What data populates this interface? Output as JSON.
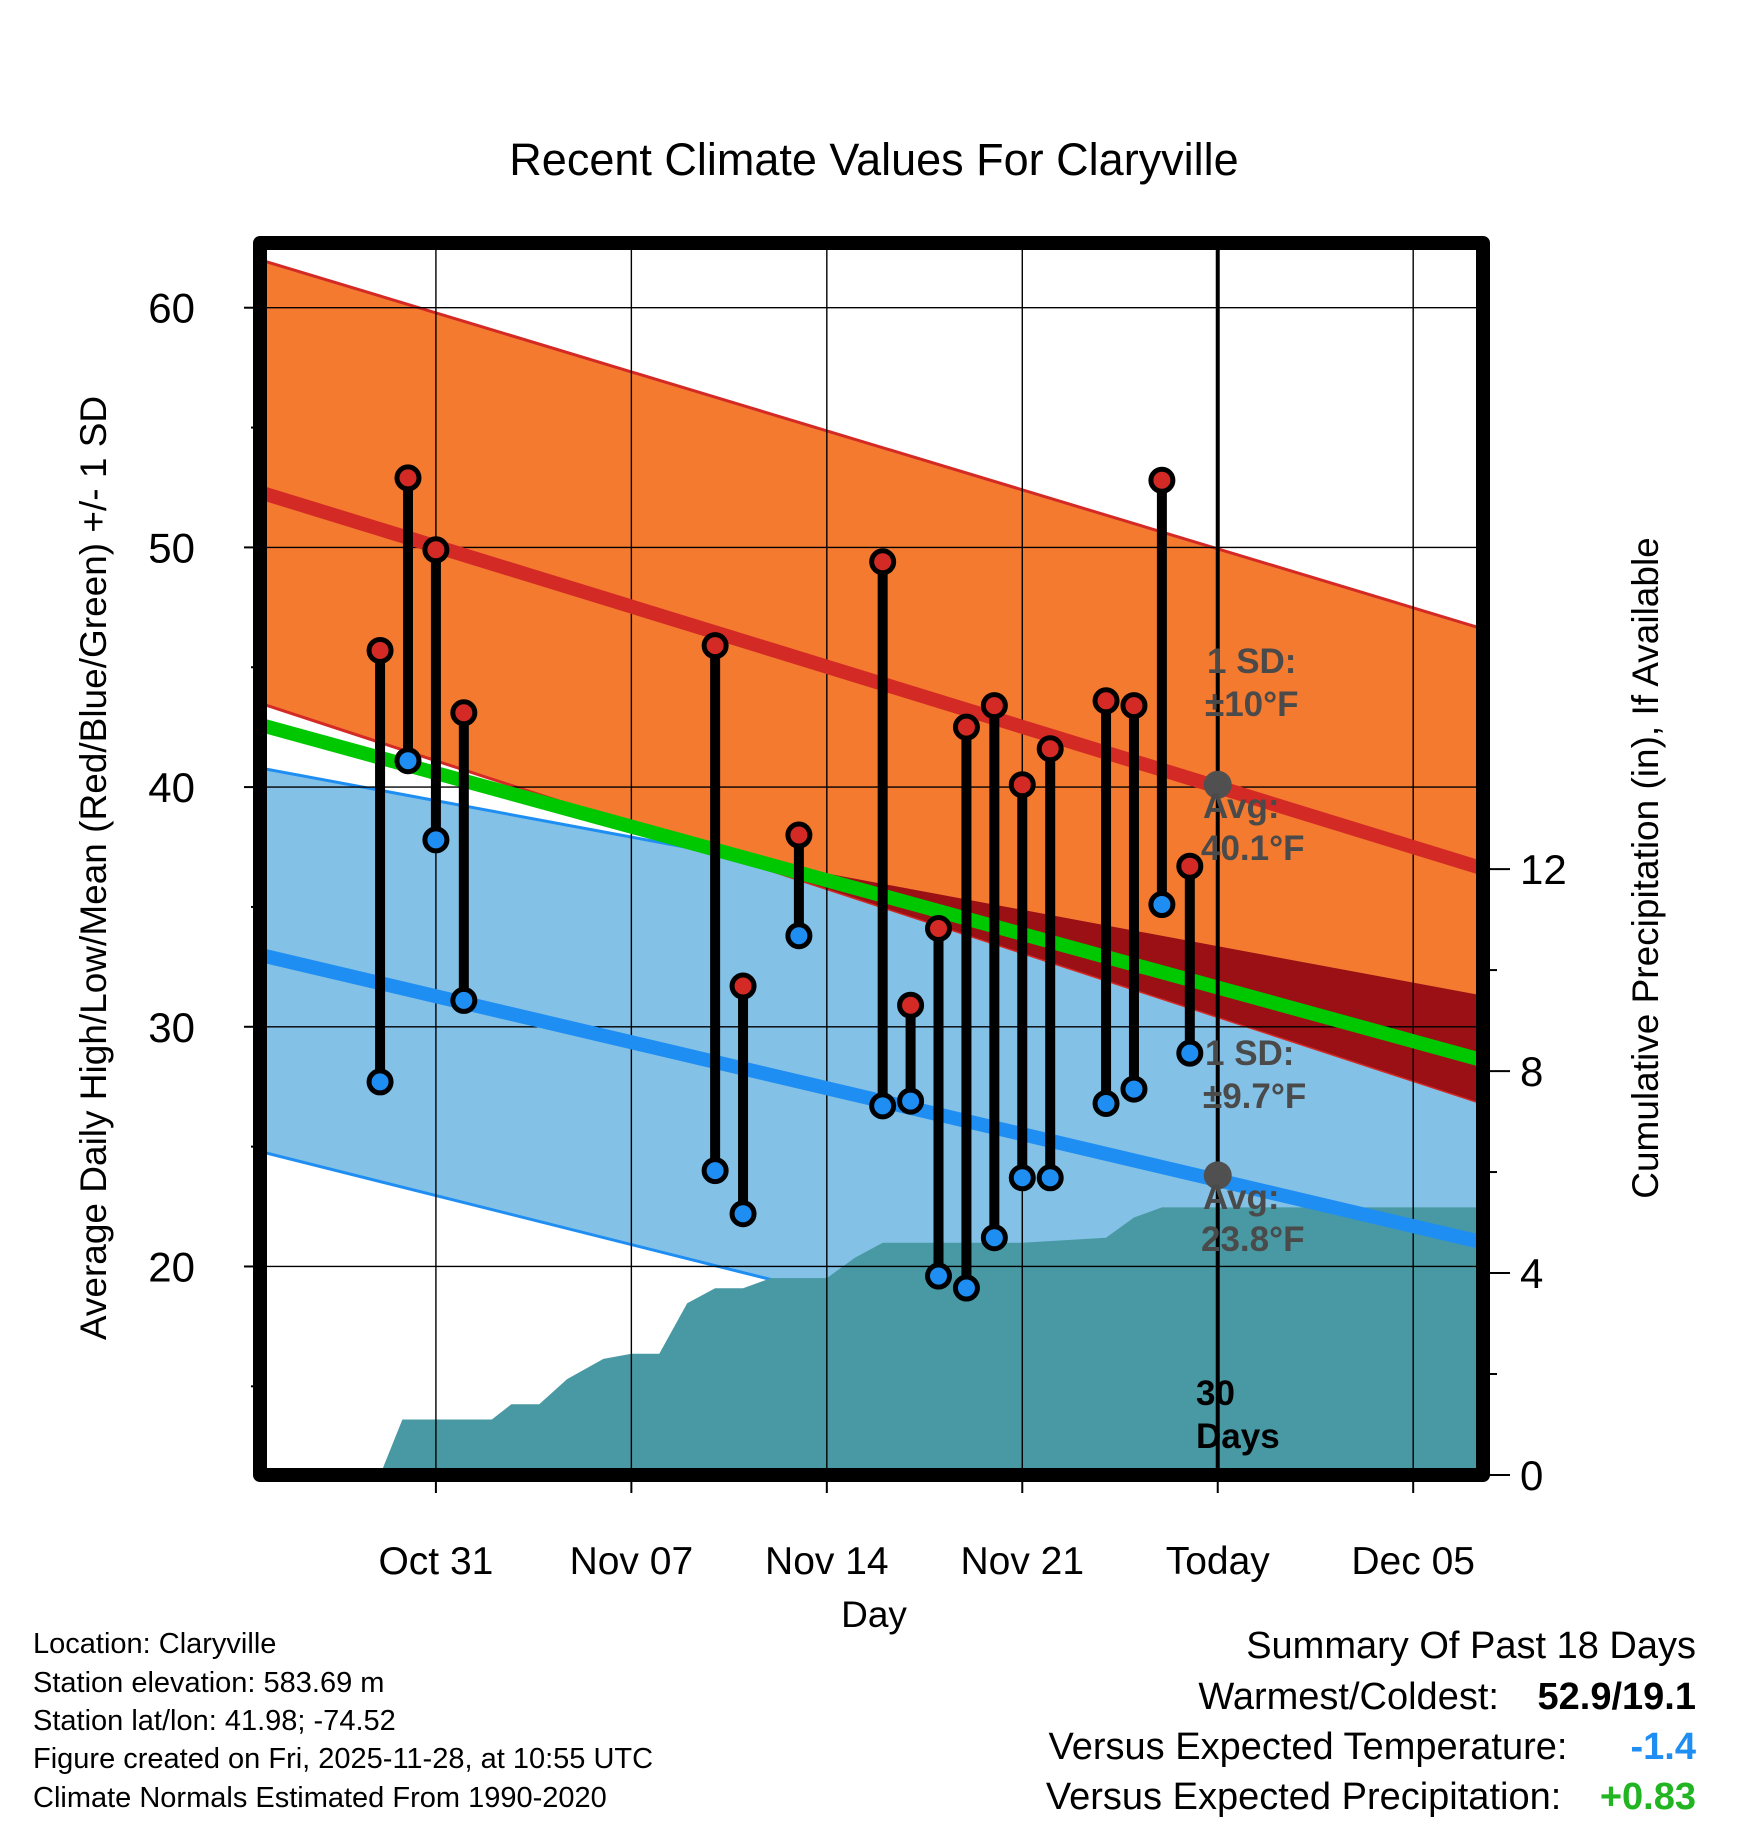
{
  "chart_data": {
    "type": "line",
    "title": "Recent Climate Values For Claryville",
    "xlabel": "Day",
    "ylabel": "Average Daily High/Low/Mean (Red/Blue/Green) +/- 1 SD",
    "y2label": "Cumulative Precipitation (in), If Available",
    "x_range_days": [
      -34.3,
      9.5
    ],
    "ylim": [
      11.3,
      62.7
    ],
    "y2lim": [
      0,
      24.4
    ],
    "x_ticks": [
      {
        "day": -28,
        "label": "Oct 31"
      },
      {
        "day": -21,
        "label": "Nov 07"
      },
      {
        "day": -14,
        "label": "Nov 14"
      },
      {
        "day": -7,
        "label": "Nov 21"
      },
      {
        "day": 0,
        "label": "Today"
      },
      {
        "day": 7,
        "label": "Dec 05"
      }
    ],
    "y_ticks": [
      20,
      30,
      40,
      50,
      60
    ],
    "y2_ticks": [
      0,
      4,
      8,
      12
    ],
    "normal_high": {
      "start": 52.3,
      "end": 36.6,
      "sd_label": "1 SD:",
      "sd_value": "±10°F",
      "avg_label": "Avg:",
      "avg_value": "40.1°F",
      "today_avg": 40.1
    },
    "normal_low": {
      "start": 33.0,
      "end": 21.0,
      "sd_label": "1 SD:",
      "sd_value": "±9.7°F",
      "avg_label": "Avg:",
      "avg_value": "23.8°F",
      "today_avg": 23.8
    },
    "normal_mean": {
      "start": 42.6,
      "end": 28.6
    },
    "high_sd_band": {
      "upper_start": 62.0,
      "upper_end": 46.6,
      "lower_start": 43.5,
      "lower_end": 26.8
    },
    "low_sd_band": {
      "upper_start": 40.8,
      "upper_end": 31.3,
      "lower_start": 24.8,
      "lower_end": 12.0
    },
    "today_day": 0,
    "window_label": "30 Days",
    "observations": [
      {
        "day": -30,
        "high": 45.7,
        "low": 27.7
      },
      {
        "day": -29,
        "high": 52.9,
        "low": 41.1
      },
      {
        "day": -28,
        "high": 49.9,
        "low": 37.8
      },
      {
        "day": -27,
        "high": 43.1,
        "low": 31.1
      },
      {
        "day": -18,
        "high": 45.9,
        "low": 24.0
      },
      {
        "day": -17,
        "high": 31.7,
        "low": 22.2
      },
      {
        "day": -15,
        "high": 38.0,
        "low": 33.8
      },
      {
        "day": -12,
        "high": 49.4,
        "low": 26.7
      },
      {
        "day": -11,
        "high": 30.9,
        "low": 26.9
      },
      {
        "day": -10,
        "high": 34.1,
        "low": 19.6
      },
      {
        "day": -9,
        "high": 42.5,
        "low": 19.1
      },
      {
        "day": -8,
        "high": 43.4,
        "low": 21.2
      },
      {
        "day": -7,
        "high": 40.1,
        "low": 23.7
      },
      {
        "day": -6,
        "high": 41.6,
        "low": 23.7
      },
      {
        "day": -4,
        "high": 43.6,
        "low": 26.8
      },
      {
        "day": -3,
        "high": 43.4,
        "low": 27.4
      },
      {
        "day": -2,
        "high": 52.8,
        "low": 35.1
      },
      {
        "day": -1,
        "high": 36.7,
        "low": 28.9
      }
    ],
    "precipitation": [
      {
        "day": -30,
        "value": 0
      },
      {
        "day": -29.2,
        "value": 1.1
      },
      {
        "day": -26,
        "value": 1.1
      },
      {
        "day": -25.3,
        "value": 1.4
      },
      {
        "day": -24.3,
        "value": 1.4
      },
      {
        "day": -23.3,
        "value": 1.9
      },
      {
        "day": -22,
        "value": 2.3
      },
      {
        "day": -21,
        "value": 2.4
      },
      {
        "day": -20,
        "value": 2.4
      },
      {
        "day": -19,
        "value": 3.4
      },
      {
        "day": -18,
        "value": 3.7
      },
      {
        "day": -17,
        "value": 3.7
      },
      {
        "day": -16,
        "value": 3.9
      },
      {
        "day": -15,
        "value": 3.9
      },
      {
        "day": -14,
        "value": 3.9
      },
      {
        "day": -13,
        "value": 4.3
      },
      {
        "day": -12,
        "value": 4.6
      },
      {
        "day": -8,
        "value": 4.6
      },
      {
        "day": -7,
        "value": 4.6
      },
      {
        "day": -4,
        "value": 4.7
      },
      {
        "day": -3,
        "value": 5.1
      },
      {
        "day": -2,
        "value": 5.3
      },
      {
        "day": 0,
        "value": 5.3
      },
      {
        "day": 9.5,
        "value": 5.3
      }
    ]
  },
  "info": {
    "location": "Location: Claryville",
    "elevation": "Station elevation: 583.69 m",
    "latlon": "Station lat/lon: 41.98; -74.52",
    "created": "Figure created on Fri, 2025-11-28, at 10:55 UTC",
    "normals": "Climate Normals Estimated From 1990-2020"
  },
  "summary": {
    "title": "Summary Of Past 18 Days",
    "warm_cold_label": "Warmest/Coldest:",
    "warm_cold_value": "52.9/19.1",
    "temp_label": "Versus Expected Temperature:",
    "temp_value": "-1.4",
    "precip_label": "Versus Expected Precipitation:",
    "precip_value": "+0.83"
  },
  "colors": {
    "high_band": "#f47a30",
    "high_line": "#d42a25",
    "low_band": "#83c1e6",
    "low_line": "#1f8ef2",
    "mean_line": "#00c800",
    "overlap_band": "#9a1015",
    "precip": "#4899a3",
    "label_gray": "#4a4a4a",
    "temp_value": "#1f8ef2",
    "precip_value": "#21b521"
  }
}
